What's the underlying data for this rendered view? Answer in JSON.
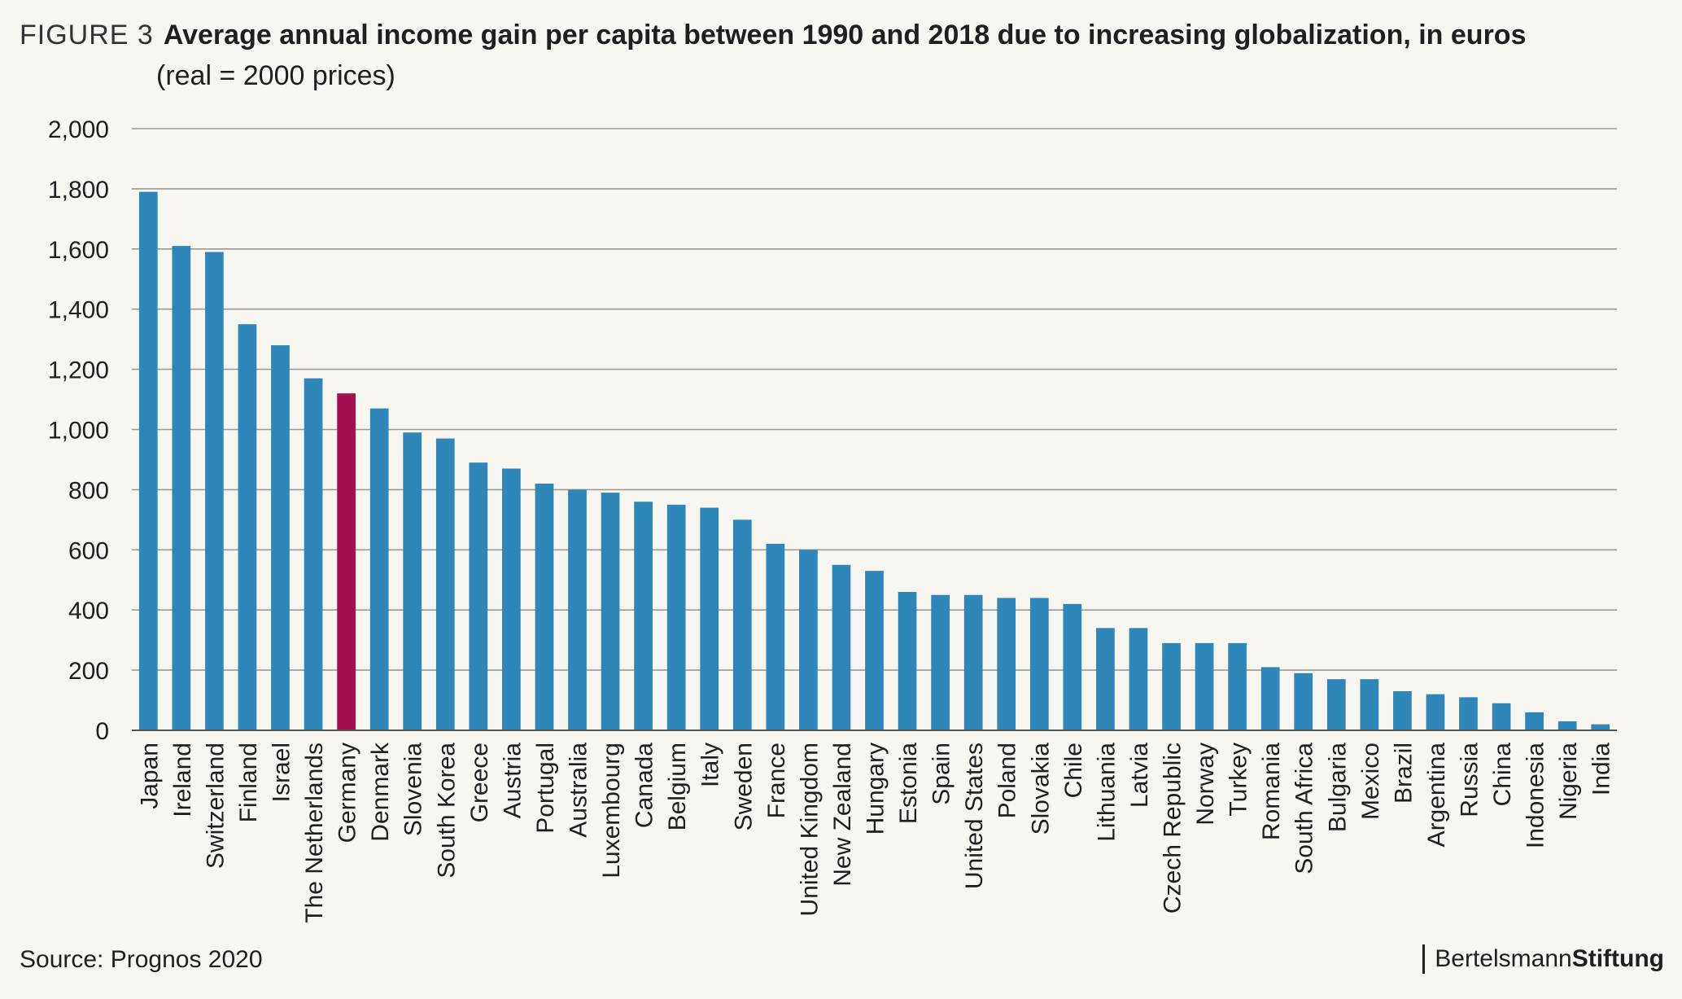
{
  "figure_label": "FIGURE 3",
  "title": "Average annual income gain per capita between 1990 and 2018 due to increasing globalization, in euros",
  "subtitle": "(real = 2000 prices)",
  "source": "Source: Prognos 2020",
  "brand": {
    "regular": "Bertelsmann",
    "bold": "Stiftung"
  },
  "colors": {
    "bar": "#2e87b8",
    "highlight": "#a50f4f",
    "grid": "#9a9a9a",
    "axis": "#555555",
    "background": "#f7f6f1"
  },
  "chart_data": {
    "type": "bar",
    "title": "Average annual income gain per capita between 1990 and 2018 due to increasing globalization, in euros",
    "subtitle": "(real = 2000 prices)",
    "ylim": [
      0,
      2000
    ],
    "yticks": [
      0,
      200,
      400,
      600,
      800,
      1000,
      1200,
      1400,
      1600,
      1800,
      2000
    ],
    "ytick_labels": [
      "0",
      "200",
      "400",
      "600",
      "800",
      "1,000",
      "1,200",
      "1,400",
      "1,600",
      "1,800",
      "2,000"
    ],
    "grid": true,
    "highlight": "Germany",
    "categories": [
      "Japan",
      "Ireland",
      "Switzerland",
      "Finland",
      "Israel",
      "The Netherlands",
      "Germany",
      "Denmark",
      "Slovenia",
      "South Korea",
      "Greece",
      "Austria",
      "Portugal",
      "Australia",
      "Luxembourg",
      "Canada",
      "Belgium",
      "Italy",
      "Sweden",
      "France",
      "United Kingdom",
      "New Zealand",
      "Hungary",
      "Estonia",
      "Spain",
      "United States",
      "Poland",
      "Slovakia",
      "Chile",
      "Lithuania",
      "Latvia",
      "Czech Republic",
      "Norway",
      "Turkey",
      "Romania",
      "South Africa",
      "Bulgaria",
      "Mexico",
      "Brazil",
      "Argentina",
      "Russia",
      "China",
      "Indonesia",
      "Nigeria",
      "India"
    ],
    "values": [
      1790,
      1610,
      1590,
      1350,
      1280,
      1170,
      1120,
      1070,
      990,
      970,
      890,
      870,
      820,
      800,
      790,
      760,
      750,
      740,
      700,
      620,
      600,
      550,
      530,
      460,
      450,
      450,
      440,
      440,
      420,
      340,
      340,
      290,
      290,
      290,
      210,
      190,
      170,
      170,
      130,
      120,
      110,
      90,
      60,
      30,
      20
    ]
  }
}
